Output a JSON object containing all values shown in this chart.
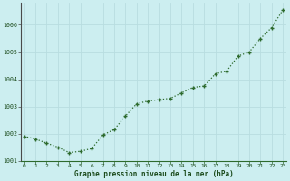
{
  "x": [
    0,
    1,
    2,
    3,
    4,
    5,
    6,
    7,
    8,
    9,
    10,
    11,
    12,
    13,
    14,
    15,
    16,
    17,
    18,
    19,
    20,
    21,
    22,
    23
  ],
  "y": [
    1001.9,
    1001.8,
    1001.65,
    1001.5,
    1001.3,
    1001.35,
    1001.45,
    1001.95,
    1002.15,
    1002.65,
    1003.1,
    1003.2,
    1003.25,
    1003.3,
    1003.5,
    1003.7,
    1003.75,
    1004.2,
    1004.3,
    1004.85,
    1005.0,
    1005.5,
    1005.9,
    1006.55
  ],
  "line_color": "#2d6a2d",
  "marker_color": "#2d6a2d",
  "bg_color": "#cceef0",
  "grid_color": "#b8dde0",
  "xlabel": "Graphe pression niveau de la mer (hPa)",
  "xlabel_color": "#1a4a1a",
  "tick_label_color": "#1a4a1a",
  "ylim": [
    1001.0,
    1006.8
  ],
  "yticks": [
    1001,
    1002,
    1003,
    1004,
    1005,
    1006
  ],
  "xticks": [
    0,
    1,
    2,
    3,
    4,
    5,
    6,
    7,
    8,
    9,
    10,
    11,
    12,
    13,
    14,
    15,
    16,
    17,
    18,
    19,
    20,
    21,
    22,
    23
  ],
  "border_color": "#2d6a2d",
  "left_spine_color": "#4a4a4a",
  "figsize": [
    3.2,
    2.0
  ],
  "dpi": 100
}
